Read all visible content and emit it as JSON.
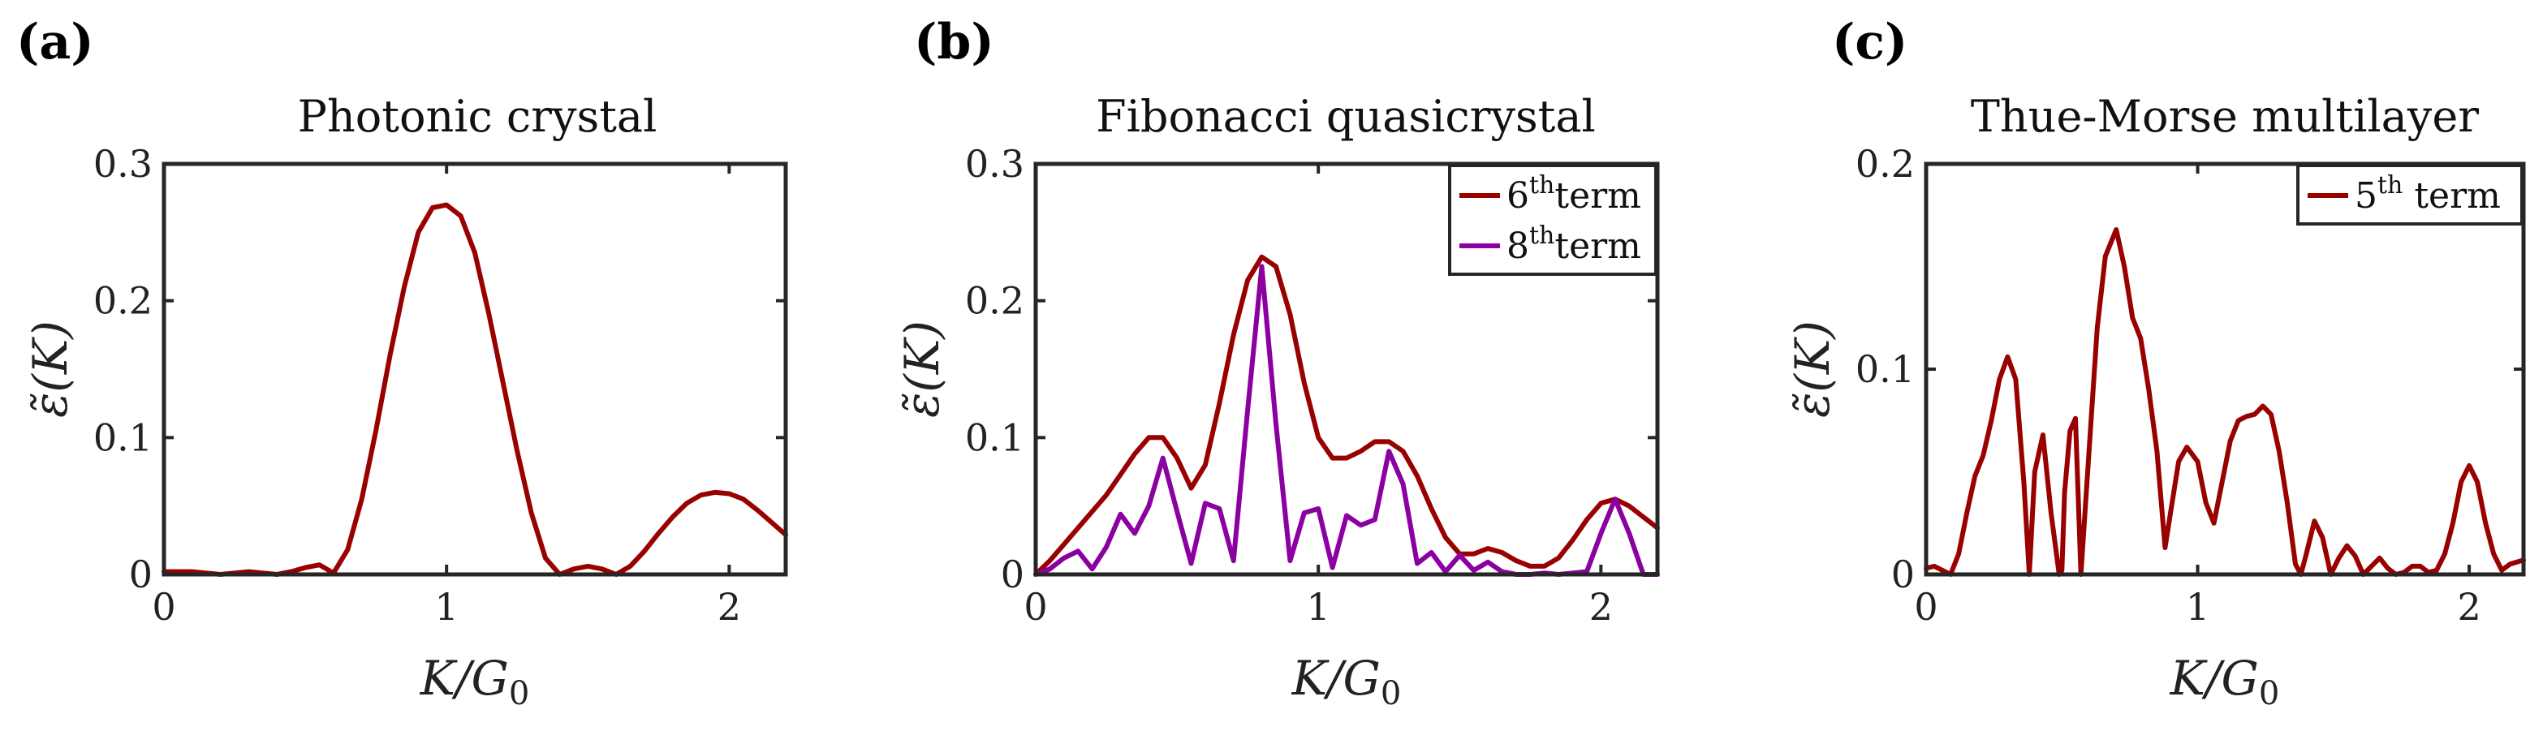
{
  "chart_data": [
    {
      "panel": "(a)",
      "type": "line",
      "title": "Photonic crystal",
      "xlabel": "K/G0",
      "ylabel": "ε̃(K)",
      "xlim": [
        0,
        2.2
      ],
      "ylim": [
        0,
        0.3
      ],
      "xticks": [
        0,
        1,
        2
      ],
      "yticks": [
        0,
        0.1,
        0.2,
        0.3
      ],
      "xtick_labels": [
        "0",
        "1",
        "2"
      ],
      "ytick_labels": [
        "0",
        "0.1",
        "0.2",
        "0.3"
      ],
      "legend": [],
      "series": [
        {
          "name": "",
          "color": "#990000",
          "x": [
            0,
            0.05,
            0.1,
            0.15,
            0.2,
            0.25,
            0.3,
            0.35,
            0.4,
            0.45,
            0.5,
            0.55,
            0.6,
            0.65,
            0.7,
            0.75,
            0.8,
            0.85,
            0.9,
            0.95,
            1.0,
            1.05,
            1.1,
            1.15,
            1.2,
            1.25,
            1.3,
            1.35,
            1.4,
            1.45,
            1.5,
            1.55,
            1.6,
            1.65,
            1.7,
            1.75,
            1.8,
            1.85,
            1.9,
            1.95,
            2.0,
            2.05,
            2.1,
            2.15,
            2.2
          ],
          "y": [
            0.002,
            0.002,
            0.002,
            0.001,
            0.0,
            0.001,
            0.002,
            0.001,
            0.0,
            0.002,
            0.005,
            0.007,
            0.001,
            0.018,
            0.055,
            0.105,
            0.16,
            0.21,
            0.25,
            0.268,
            0.27,
            0.262,
            0.235,
            0.19,
            0.14,
            0.09,
            0.045,
            0.012,
            0.0,
            0.004,
            0.006,
            0.004,
            0.0,
            0.006,
            0.017,
            0.03,
            0.042,
            0.052,
            0.058,
            0.06,
            0.059,
            0.055,
            0.047,
            0.038,
            0.029
          ]
        }
      ]
    },
    {
      "panel": "(b)",
      "type": "line",
      "title": "Fibonacci quasicrystal",
      "xlabel": "K/G0",
      "ylabel": "ε̃(K)",
      "xlim": [
        0,
        2.2
      ],
      "ylim": [
        0,
        0.3
      ],
      "xticks": [
        0,
        1,
        2
      ],
      "yticks": [
        0,
        0.1,
        0.2,
        0.3
      ],
      "xtick_labels": [
        "0",
        "1",
        "2"
      ],
      "ytick_labels": [
        "0",
        "0.1",
        "0.2",
        "0.3"
      ],
      "legend": [
        {
          "base": "6",
          "sup": "th",
          "after": "term",
          "color": "#990000"
        },
        {
          "base": "8",
          "sup": "th",
          "after": "term",
          "color": "#8B00A0"
        }
      ],
      "series": [
        {
          "name": "6th term",
          "color": "#990000",
          "x": [
            0,
            0.05,
            0.1,
            0.15,
            0.2,
            0.25,
            0.3,
            0.35,
            0.4,
            0.45,
            0.5,
            0.55,
            0.6,
            0.65,
            0.7,
            0.75,
            0.8,
            0.85,
            0.9,
            0.95,
            1.0,
            1.05,
            1.1,
            1.15,
            1.2,
            1.25,
            1.3,
            1.35,
            1.4,
            1.45,
            1.5,
            1.55,
            1.6,
            1.65,
            1.7,
            1.75,
            1.8,
            1.85,
            1.9,
            1.95,
            2.0,
            2.05,
            2.1,
            2.15,
            2.2
          ],
          "y": [
            0.0,
            0.01,
            0.022,
            0.034,
            0.046,
            0.058,
            0.073,
            0.088,
            0.1,
            0.1,
            0.085,
            0.063,
            0.08,
            0.125,
            0.175,
            0.215,
            0.232,
            0.225,
            0.19,
            0.14,
            0.1,
            0.085,
            0.085,
            0.09,
            0.097,
            0.097,
            0.09,
            0.072,
            0.048,
            0.027,
            0.015,
            0.015,
            0.019,
            0.016,
            0.01,
            0.006,
            0.006,
            0.012,
            0.025,
            0.04,
            0.052,
            0.055,
            0.05,
            0.042,
            0.034
          ]
        },
        {
          "name": "8th term",
          "color": "#8B00A0",
          "x": [
            0,
            0.05,
            0.1,
            0.15,
            0.2,
            0.25,
            0.3,
            0.35,
            0.4,
            0.45,
            0.5,
            0.55,
            0.6,
            0.65,
            0.7,
            0.75,
            0.8,
            0.85,
            0.9,
            0.95,
            1.0,
            1.05,
            1.1,
            1.15,
            1.2,
            1.25,
            1.3,
            1.35,
            1.4,
            1.45,
            1.5,
            1.55,
            1.6,
            1.65,
            1.7,
            1.75,
            1.8,
            1.85,
            1.9,
            1.95,
            2.0,
            2.05,
            2.1,
            2.15,
            2.2
          ],
          "y": [
            0.0,
            0.004,
            0.012,
            0.017,
            0.004,
            0.02,
            0.044,
            0.03,
            0.05,
            0.085,
            0.046,
            0.008,
            0.052,
            0.048,
            0.01,
            0.12,
            0.225,
            0.11,
            0.01,
            0.045,
            0.048,
            0.005,
            0.043,
            0.036,
            0.04,
            0.09,
            0.066,
            0.008,
            0.016,
            0.002,
            0.014,
            0.003,
            0.009,
            0.002,
            0.0,
            0.0,
            0.001,
            0.0,
            0.001,
            0.002,
            0.03,
            0.055,
            0.03,
            0.0,
            0.0
          ]
        }
      ]
    },
    {
      "panel": "(c)",
      "type": "line",
      "title": "Thue-Morse multilayer",
      "xlabel": "K/G0",
      "ylabel": "ε̃(K)",
      "xlim": [
        0,
        2.2
      ],
      "ylim": [
        0,
        0.2
      ],
      "xticks": [
        0,
        1,
        2
      ],
      "yticks": [
        0,
        0.1,
        0.2
      ],
      "xtick_labels": [
        "0",
        "1",
        "2"
      ],
      "ytick_labels": [
        "0",
        "0.1",
        "0.2"
      ],
      "legend": [
        {
          "base": "5",
          "sup": "th",
          "after": " term",
          "color": "#990000"
        }
      ],
      "series": [
        {
          "name": "5th term",
          "color": "#990000",
          "x": [
            0,
            0.03,
            0.06,
            0.09,
            0.12,
            0.15,
            0.18,
            0.21,
            0.24,
            0.27,
            0.3,
            0.33,
            0.36,
            0.38,
            0.4,
            0.43,
            0.46,
            0.49,
            0.5,
            0.51,
            0.53,
            0.55,
            0.57,
            0.6,
            0.63,
            0.66,
            0.7,
            0.73,
            0.76,
            0.79,
            0.82,
            0.85,
            0.88,
            0.9,
            0.93,
            0.96,
            1.0,
            1.03,
            1.06,
            1.09,
            1.12,
            1.15,
            1.18,
            1.21,
            1.24,
            1.27,
            1.3,
            1.33,
            1.36,
            1.38,
            1.4,
            1.43,
            1.46,
            1.49,
            1.52,
            1.55,
            1.58,
            1.61,
            1.64,
            1.67,
            1.7,
            1.73,
            1.76,
            1.79,
            1.82,
            1.85,
            1.88,
            1.91,
            1.94,
            1.97,
            2.0,
            2.03,
            2.06,
            2.09,
            2.12,
            2.15,
            2.2
          ],
          "y": [
            0.003,
            0.004,
            0.002,
            0.0,
            0.01,
            0.03,
            0.048,
            0.058,
            0.075,
            0.095,
            0.106,
            0.095,
            0.045,
            0.0,
            0.05,
            0.068,
            0.03,
            0.0,
            0.002,
            0.04,
            0.07,
            0.076,
            0.0,
            0.06,
            0.12,
            0.155,
            0.168,
            0.15,
            0.125,
            0.115,
            0.09,
            0.06,
            0.013,
            0.03,
            0.055,
            0.062,
            0.055,
            0.035,
            0.025,
            0.045,
            0.065,
            0.075,
            0.077,
            0.078,
            0.082,
            0.078,
            0.06,
            0.035,
            0.005,
            0.0,
            0.01,
            0.026,
            0.018,
            0.0,
            0.008,
            0.014,
            0.009,
            0.0,
            0.004,
            0.008,
            0.003,
            0.0,
            0.001,
            0.004,
            0.004,
            0.001,
            0.002,
            0.01,
            0.025,
            0.045,
            0.053,
            0.045,
            0.025,
            0.01,
            0.002,
            0.005,
            0.007
          ]
        }
      ]
    }
  ]
}
